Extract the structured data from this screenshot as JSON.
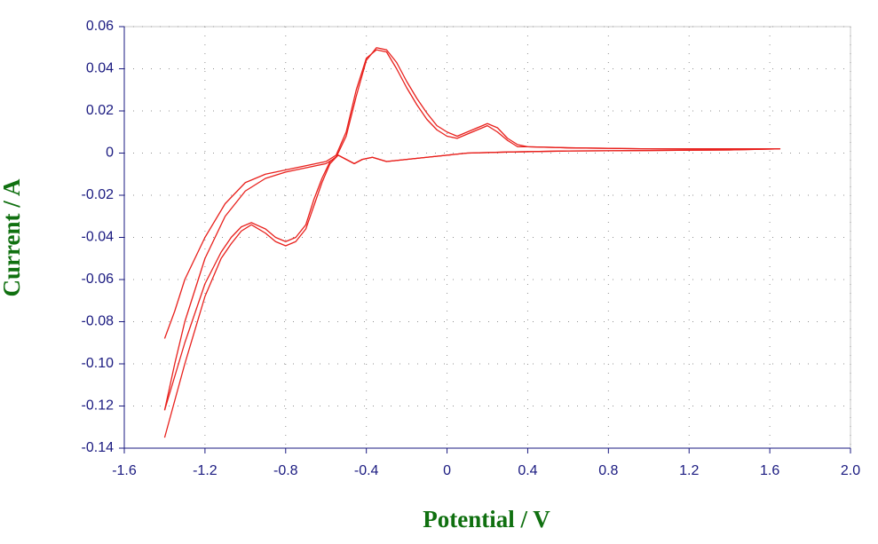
{
  "chart_data": {
    "type": "line",
    "xlabel": "Potential / V",
    "ylabel": "Current / A",
    "xlim": [
      -1.6,
      2.0
    ],
    "ylim": [
      -0.14,
      0.06
    ],
    "xticks": [
      -1.6,
      -1.2,
      -0.8,
      -0.4,
      0,
      0.4,
      0.8,
      1.2,
      1.6,
      {
        "value": 2,
        "label": "2.0"
      }
    ],
    "yticks": [
      0.06,
      0.04,
      0.02,
      0,
      -0.02,
      -0.04,
      -0.06,
      -0.08,
      {
        "value": -0.1,
        "label": "-0.10"
      },
      -0.12,
      -0.14
    ],
    "grid": true,
    "series": [
      {
        "color": "#e8201c",
        "x": [
          -1.4,
          -1.35,
          -1.3,
          -1.2,
          -1.1,
          -1.0,
          -0.9,
          -0.8,
          -0.7,
          -0.6,
          -0.55,
          -0.5,
          -0.45,
          -0.4,
          -0.35,
          -0.3,
          -0.25,
          -0.2,
          -0.15,
          -0.1,
          -0.05,
          0,
          0.05,
          0.1,
          0.15,
          0.2,
          0.25,
          0.3,
          0.35,
          0.4,
          0.6,
          1.0,
          1.4,
          1.65,
          1.4,
          1.0,
          0.6,
          0.3,
          0.1,
          0,
          -0.1,
          -0.2,
          -0.3,
          -0.37,
          -0.42,
          -0.46,
          -0.5,
          -0.54,
          -0.58,
          -0.62,
          -0.66,
          -0.7,
          -0.75,
          -0.8,
          -0.85,
          -0.9,
          -0.97,
          -1.02,
          -1.07,
          -1.12,
          -1.2,
          -1.3,
          -1.4
        ],
        "values": [
          -0.088,
          -0.075,
          -0.06,
          -0.04,
          -0.024,
          -0.014,
          -0.01,
          -0.008,
          -0.006,
          -0.004,
          -0.001,
          0.01,
          0.03,
          0.045,
          0.049,
          0.048,
          0.04,
          0.031,
          0.023,
          0.016,
          0.011,
          0.008,
          0.007,
          0.009,
          0.011,
          0.013,
          0.01,
          0.006,
          0.003,
          0.003,
          0.0025,
          0.002,
          0.002,
          0.002,
          0.0015,
          0.0012,
          0.001,
          0.0005,
          0,
          -0.001,
          -0.002,
          -0.003,
          -0.004,
          -0.002,
          -0.003,
          -0.005,
          -0.003,
          -0.001,
          -0.004,
          -0.012,
          -0.022,
          -0.034,
          -0.04,
          -0.042,
          -0.04,
          -0.036,
          -0.033,
          -0.035,
          -0.04,
          -0.047,
          -0.062,
          -0.09,
          -0.122
        ]
      },
      {
        "color": "#e8201c",
        "x": [
          -1.4,
          -1.35,
          -1.3,
          -1.2,
          -1.1,
          -1.0,
          -0.9,
          -0.8,
          -0.7,
          -0.6,
          -0.55,
          -0.5,
          -0.45,
          -0.4,
          -0.35,
          -0.3,
          -0.25,
          -0.2,
          -0.15,
          -0.1,
          -0.05,
          0,
          0.05,
          0.1,
          0.15,
          0.2,
          0.25,
          0.3,
          0.35,
          0.4,
          0.6,
          1.0,
          1.4,
          1.65,
          1.4,
          1.0,
          0.6,
          0.3,
          0.1,
          0,
          -0.1,
          -0.2,
          -0.3,
          -0.37,
          -0.42,
          -0.46,
          -0.5,
          -0.54,
          -0.58,
          -0.62,
          -0.66,
          -0.7,
          -0.75,
          -0.8,
          -0.85,
          -0.9,
          -0.97,
          -1.02,
          -1.07,
          -1.12,
          -1.2,
          -1.3,
          -1.4
        ],
        "values": [
          -0.122,
          -0.1,
          -0.08,
          -0.05,
          -0.03,
          -0.018,
          -0.012,
          -0.009,
          -0.007,
          -0.005,
          -0.002,
          0.008,
          0.027,
          0.044,
          0.05,
          0.049,
          0.043,
          0.034,
          0.026,
          0.019,
          0.013,
          0.01,
          0.008,
          0.01,
          0.012,
          0.014,
          0.012,
          0.007,
          0.004,
          0.003,
          0.0025,
          0.002,
          0.002,
          0.002,
          0.0015,
          0.0012,
          0.001,
          0.0005,
          0,
          -0.001,
          -0.002,
          -0.003,
          -0.004,
          -0.002,
          -0.003,
          -0.005,
          -0.003,
          -0.001,
          -0.005,
          -0.014,
          -0.025,
          -0.036,
          -0.042,
          -0.044,
          -0.042,
          -0.038,
          -0.034,
          -0.037,
          -0.043,
          -0.05,
          -0.068,
          -0.1,
          -0.135
        ]
      }
    ]
  }
}
